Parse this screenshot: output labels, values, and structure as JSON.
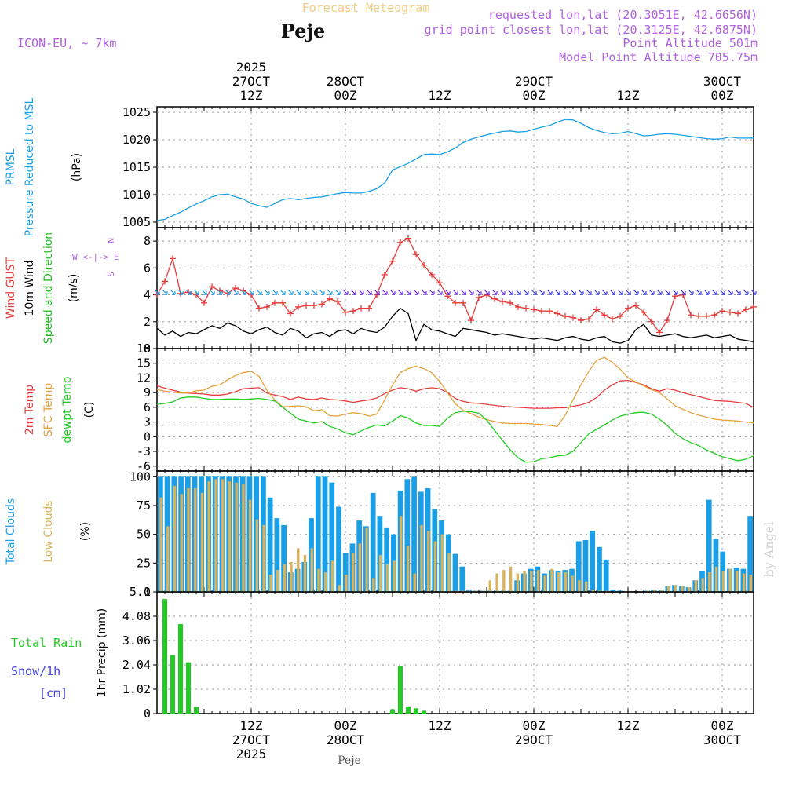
{
  "header": {
    "title": "Forecast Meteogram",
    "station": "Peje",
    "model": "ICON-EU, ~ 7km",
    "requested": "requested lon,lat (20.3051E, 42.6656N)",
    "gridpoint": "grid point closest lon,lat (20.3125E, 42.6875N)",
    "point_alt": "Point Altitude 501m",
    "model_alt": "Model Point Altitude 705.75m",
    "watermark": "by Angel",
    "footer_station": "Peje"
  },
  "colors": {
    "pressure": "#1a9fe6",
    "gust": "#e63c3c",
    "wind": "#000000",
    "dir": "#22bb22",
    "temp2m": "#e63c3c",
    "sfc": "#e6a03c",
    "dewpt": "#22cc22",
    "total_cloud": "#1a9fe6",
    "low_cloud": "#d9b25e",
    "rain": "#22cc22",
    "snow": "#4444ee",
    "title": "#f2cc80",
    "meta": "#b060e0"
  },
  "time_axis": {
    "top_labels": [
      {
        "h": 12,
        "lines": [
          "2025",
          "27OCT",
          "12Z"
        ]
      },
      {
        "h": 24,
        "lines": [
          "28OCT",
          "00Z"
        ]
      },
      {
        "h": 36,
        "lines": [
          "12Z"
        ]
      },
      {
        "h": 48,
        "lines": [
          "29OCT",
          "00Z"
        ]
      },
      {
        "h": 60,
        "lines": [
          "12Z"
        ]
      },
      {
        "h": 72,
        "lines": [
          "30OCT",
          "00Z"
        ]
      }
    ],
    "bottom_labels": [
      {
        "h": 12,
        "lines": [
          "12Z",
          "27OCT",
          "2025"
        ]
      },
      {
        "h": 24,
        "lines": [
          "00Z",
          "28OCT"
        ]
      },
      {
        "h": 36,
        "lines": [
          "12Z"
        ]
      },
      {
        "h": 48,
        "lines": [
          "00Z",
          "29OCT"
        ]
      },
      {
        "h": 60,
        "lines": [
          "12Z"
        ]
      },
      {
        "h": 72,
        "lines": [
          "00Z",
          "30OCT"
        ]
      }
    ],
    "hours_range": [
      0,
      76
    ]
  },
  "chart_data": [
    {
      "type": "line",
      "title": "PRMSL Pressure Reduced to MSL",
      "ylabel_lines": [
        "PRMSL",
        "Pressure Reduced to MSL",
        "(hPa)"
      ],
      "ylim": [
        1004,
        1026
      ],
      "yticks": [
        "1005",
        "1010",
        "1015",
        "1020",
        "1025"
      ],
      "series": [
        {
          "name": "PRMSL",
          "color_key": "pressure",
          "values": [
            1005.3,
            1005.5,
            1006.2,
            1006.8,
            1007.6,
            1008.3,
            1008.9,
            1009.6,
            1010.0,
            1010.1,
            1009.6,
            1009.2,
            1008.4,
            1008.0,
            1007.7,
            1008.4,
            1009.1,
            1009.3,
            1009.1,
            1009.3,
            1009.5,
            1009.6,
            1009.9,
            1010.2,
            1010.4,
            1010.3,
            1010.3,
            1010.6,
            1011.1,
            1012.1,
            1014.5,
            1015.1,
            1015.7,
            1016.5,
            1017.3,
            1017.4,
            1017.3,
            1017.8,
            1018.5,
            1019.5,
            1020.1,
            1020.5,
            1020.9,
            1021.2,
            1021.5,
            1021.6,
            1021.4,
            1021.5,
            1021.9,
            1022.3,
            1022.6,
            1023.2,
            1023.7,
            1023.6,
            1023.0,
            1022.2,
            1021.7,
            1021.3,
            1021.1,
            1021.2,
            1021.5,
            1021.1,
            1020.7,
            1020.8,
            1021.0,
            1021.1,
            1021.0,
            1020.8,
            1020.6,
            1020.4,
            1020.2,
            1020.1,
            1020.2,
            1020.5,
            1020.3,
            1020.3,
            1020.3
          ]
        }
      ]
    },
    {
      "type": "line",
      "title": "Wind GUST / 10m Wind Speed and Direction",
      "ylabel_lines": [
        "Wind GUST",
        "10m Wind",
        "Speed and Direction",
        "(m/s)"
      ],
      "compass": [
        "N",
        "W <-|-> E",
        "S"
      ],
      "ylim": [
        0,
        9
      ],
      "yticks": [
        "0",
        "2",
        "4",
        "6",
        "8"
      ],
      "series": [
        {
          "name": "Wind GUST",
          "color_key": "gust",
          "values": [
            4.0,
            5.0,
            6.7,
            4.1,
            4.2,
            4.0,
            3.4,
            4.6,
            4.3,
            4.1,
            4.5,
            4.3,
            4.0,
            3.0,
            3.1,
            3.4,
            3.4,
            2.6,
            3.1,
            3.2,
            3.2,
            3.3,
            3.7,
            3.5,
            2.7,
            2.8,
            3.0,
            3.0,
            4.0,
            5.5,
            6.5,
            7.9,
            8.2,
            7.0,
            6.2,
            5.5,
            4.9,
            3.9,
            3.4,
            3.4,
            2.1,
            3.8,
            4.0,
            3.7,
            3.5,
            3.4,
            3.1,
            3.0,
            2.9,
            2.8,
            2.8,
            2.6,
            2.4,
            2.3,
            2.1,
            2.2,
            2.9,
            2.5,
            2.2,
            2.4,
            3.0,
            3.2,
            2.7,
            2.0,
            1.2,
            2.1,
            3.9,
            4.0,
            2.5,
            2.4,
            2.4,
            2.5,
            2.8,
            2.7,
            2.6,
            2.9,
            3.1
          ]
        },
        {
          "name": "10m Wind",
          "color_key": "wind",
          "values": [
            1.5,
            1.0,
            1.3,
            0.9,
            1.2,
            1.1,
            1.4,
            1.7,
            1.5,
            1.9,
            1.7,
            1.3,
            1.1,
            1.4,
            1.6,
            1.2,
            1.0,
            1.5,
            1.3,
            0.8,
            1.1,
            1.2,
            0.9,
            1.3,
            1.4,
            1.1,
            1.5,
            1.3,
            1.2,
            1.6,
            2.4,
            3.0,
            2.6,
            0.6,
            1.8,
            1.4,
            1.3,
            1.1,
            0.9,
            1.5,
            1.4,
            1.3,
            1.2,
            1.0,
            1.1,
            1.0,
            0.9,
            0.8,
            0.7,
            0.8,
            0.7,
            0.6,
            0.8,
            0.9,
            0.7,
            0.6,
            0.8,
            0.9,
            0.5,
            0.4,
            0.6,
            1.4,
            1.8,
            1.0,
            0.9,
            1.0,
            1.1,
            0.9,
            0.8,
            0.9,
            1.0,
            0.8,
            0.9,
            1.0,
            0.7,
            0.6,
            0.5
          ]
        }
      ]
    },
    {
      "type": "line",
      "title": "2m Temp / SFC Temp / dewpt Temp",
      "ylabel_lines": [
        "2m Temp",
        "SFC Temp",
        "dewpt Temp",
        "(C)"
      ],
      "ylim": [
        -7,
        18
      ],
      "yticks": [
        "-6",
        "-3",
        "0",
        "3",
        "6",
        "9",
        "12",
        "15",
        "18"
      ],
      "series": [
        {
          "name": "2m Temp",
          "color_key": "temp2m",
          "values": [
            10.4,
            9.9,
            9.5,
            9.1,
            8.9,
            8.8,
            8.7,
            8.5,
            8.5,
            8.7,
            9.2,
            9.8,
            9.9,
            10.0,
            8.9,
            8.5,
            8.2,
            7.6,
            8.1,
            7.7,
            7.6,
            7.9,
            7.6,
            7.5,
            7.3,
            7.0,
            7.3,
            7.5,
            7.9,
            8.8,
            9.5,
            10.0,
            9.8,
            9.3,
            9.8,
            10.0,
            9.8,
            9.0,
            7.8,
            7.2,
            6.9,
            6.8,
            6.6,
            6.4,
            6.2,
            6.1,
            6.0,
            5.9,
            5.8,
            5.8,
            5.8,
            5.9,
            5.9,
            6.2,
            6.5,
            7.0,
            8.0,
            9.5,
            10.6,
            11.4,
            11.5,
            11.1,
            10.6,
            9.8,
            9.3,
            9.8,
            9.5,
            9.0,
            8.6,
            8.2,
            7.8,
            7.4,
            7.3,
            7.2,
            7.0,
            6.8,
            6.0
          ]
        },
        {
          "name": "SFC Temp",
          "color_key": "sfc",
          "values": [
            9.6,
            9.3,
            9.1,
            8.9,
            8.9,
            9.4,
            9.5,
            10.3,
            10.6,
            11.6,
            12.5,
            13.1,
            13.4,
            12.3,
            9.5,
            7.5,
            6.1,
            6.2,
            6.3,
            6.1,
            5.3,
            5.5,
            4.3,
            4.2,
            4.6,
            4.9,
            4.7,
            4.2,
            4.6,
            7.5,
            10.6,
            13.1,
            13.9,
            14.4,
            13.9,
            13.1,
            11.3,
            9.0,
            6.7,
            5.4,
            4.7,
            4.0,
            3.5,
            3.1,
            2.8,
            2.7,
            2.7,
            2.7,
            2.6,
            2.5,
            2.3,
            2.1,
            4.4,
            7.5,
            10.6,
            13.3,
            15.6,
            16.2,
            15.2,
            13.8,
            12.0,
            11.2,
            10.4,
            9.6,
            9.0,
            7.7,
            6.3,
            5.6,
            4.9,
            4.4,
            4.0,
            3.6,
            3.4,
            3.3,
            3.2,
            3.0,
            2.8
          ]
        },
        {
          "name": "dewpt Temp",
          "color_key": "dewpt",
          "values": [
            6.6,
            6.8,
            7.1,
            7.9,
            8.1,
            8.1,
            7.8,
            7.6,
            7.6,
            7.7,
            7.7,
            7.6,
            7.7,
            7.8,
            7.6,
            7.3,
            6.0,
            4.8,
            3.6,
            3.2,
            2.8,
            3.1,
            2.1,
            1.6,
            0.8,
            0.4,
            1.2,
            1.9,
            2.4,
            2.2,
            3.2,
            4.3,
            3.8,
            2.8,
            2.3,
            2.3,
            2.1,
            3.8,
            4.9,
            5.2,
            5.1,
            4.8,
            3.4,
            1.3,
            -0.7,
            -2.7,
            -4.3,
            -5.2,
            -5.1,
            -4.5,
            -4.3,
            -3.9,
            -3.8,
            -3.0,
            -1.2,
            0.6,
            1.5,
            2.4,
            3.4,
            4.2,
            4.6,
            4.9,
            5.0,
            4.6,
            3.6,
            2.3,
            0.7,
            -0.4,
            -1.2,
            -1.8,
            -2.7,
            -3.4,
            -4.1,
            -4.5,
            -4.9,
            -4.6,
            -3.9
          ]
        }
      ]
    },
    {
      "type": "bar",
      "title": "Total Clouds / Low Clouds",
      "ylabel_lines": [
        "Total Clouds",
        "Low Clouds",
        "(%)"
      ],
      "ylim": [
        0,
        105
      ],
      "yticks": [
        "0",
        "25",
        "50",
        "75",
        "100"
      ],
      "series": [
        {
          "name": "Total Clouds",
          "color_key": "total_cloud",
          "values": [
            100,
            100,
            100,
            100,
            100,
            100,
            100,
            100,
            100,
            100,
            100,
            100,
            100,
            100,
            100,
            100,
            82,
            64,
            58,
            17,
            20,
            26,
            64,
            100,
            100,
            95,
            74,
            34,
            42,
            62,
            57,
            86,
            66,
            56,
            50,
            88,
            98,
            100,
            87,
            90,
            72,
            62,
            50,
            33,
            22,
            2,
            1,
            1,
            1,
            1,
            1,
            1,
            10,
            16,
            20,
            22,
            16,
            19,
            18,
            19,
            20,
            44,
            45,
            53,
            39,
            28,
            2,
            1,
            0,
            0,
            0,
            1,
            2,
            2,
            5,
            6,
            5,
            4,
            10,
            18,
            80,
            46,
            35,
            20,
            21,
            20,
            66
          ]
        },
        {
          "name": "Low Clouds",
          "color_key": "low_cloud",
          "values": [
            82,
            57,
            92,
            85,
            90,
            90,
            86,
            96,
            98,
            98,
            96,
            95,
            94,
            80,
            63,
            58,
            15,
            19,
            24,
            26,
            38,
            32,
            38,
            20,
            17,
            27,
            6,
            15,
            34,
            42,
            56,
            12,
            32,
            24,
            27,
            66,
            40,
            16,
            58,
            53,
            44,
            50,
            34,
            1,
            1,
            1,
            1,
            1,
            10,
            16,
            19,
            22,
            16,
            18,
            18,
            19,
            14,
            20,
            17,
            17,
            14,
            10,
            9,
            2,
            1,
            1,
            0,
            0,
            0,
            0,
            0,
            1,
            2,
            2,
            5,
            6,
            5,
            4,
            10,
            12,
            17,
            22,
            18,
            20,
            18,
            16,
            15
          ]
        }
      ]
    },
    {
      "type": "bar",
      "title": "1hr Precip (mm)",
      "ylabel_lines": [
        "Total  Rain",
        "Snow/1h",
        "[cm]",
        "1hr Precip (mm)"
      ],
      "ylim": [
        0,
        5.1
      ],
      "yticks": [
        "0",
        "1.02",
        "2.04",
        "3.06",
        "4.08",
        "5.1"
      ],
      "series": [
        {
          "name": "Total Rain",
          "color_key": "rain",
          "values": [
            [
              1,
              4.8
            ],
            [
              2,
              2.45
            ],
            [
              3,
              3.75
            ],
            [
              4,
              2.15
            ],
            [
              5,
              0.28
            ],
            [
              30,
              0.18
            ],
            [
              31,
              2.0
            ],
            [
              32,
              0.3
            ],
            [
              33,
              0.22
            ],
            [
              34,
              0.12
            ]
          ]
        }
      ]
    }
  ]
}
